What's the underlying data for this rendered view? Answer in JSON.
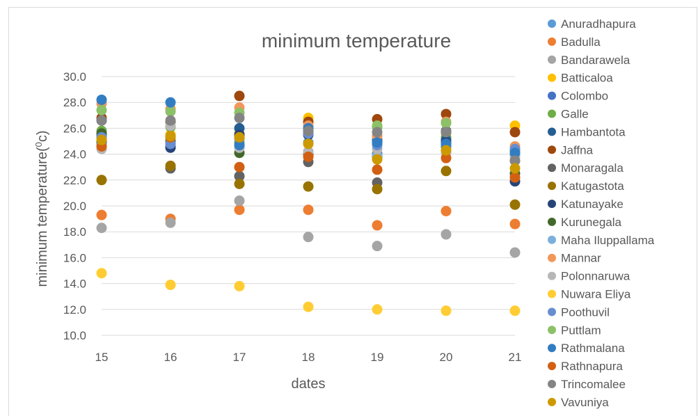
{
  "chart_data": {
    "type": "scatter",
    "title": "minimum temperature",
    "xlabel": "dates",
    "ylabel_main": "minimum temperature(",
    "ylabel_sup": "0",
    "ylabel_end": "c)",
    "x": [
      15,
      16,
      17,
      18,
      19,
      20,
      21
    ],
    "xlim": [
      15,
      21
    ],
    "ylim": [
      10,
      30
    ],
    "y_ticks": [
      10.0,
      12.0,
      14.0,
      16.0,
      18.0,
      20.0,
      22.0,
      24.0,
      26.0,
      28.0,
      30.0
    ],
    "grid": true,
    "legend_position": "right",
    "series": [
      {
        "name": "Anuradhapura",
        "color": "#5B9BD5",
        "values": [
          25.0,
          24.7,
          24.6,
          24.9,
          24.8,
          24.6,
          24.2
        ]
      },
      {
        "name": "Badulla",
        "color": "#ED7D31",
        "values": [
          19.3,
          19.0,
          19.7,
          19.7,
          18.5,
          19.6,
          18.6
        ]
      },
      {
        "name": "Bandarawela",
        "color": "#A5A5A5",
        "values": [
          18.3,
          18.7,
          20.4,
          17.6,
          16.9,
          17.8,
          16.4
        ]
      },
      {
        "name": "Batticaloa",
        "color": "#FFC000",
        "values": [
          25.3,
          25.5,
          25.6,
          26.8,
          25.4,
          25.6,
          26.2
        ]
      },
      {
        "name": "Colombo",
        "color": "#4472C4",
        "values": [
          25.0,
          24.6,
          25.4,
          25.7,
          25.0,
          24.9,
          24.3
        ]
      },
      {
        "name": "Galle",
        "color": "#70AD47",
        "values": [
          25.8,
          26.1,
          24.9,
          25.9,
          26.1,
          25.3,
          24.2
        ]
      },
      {
        "name": "Hambantota",
        "color": "#255E91",
        "values": [
          25.5,
          24.9,
          26.0,
          26.2,
          25.1,
          25.1,
          24.0
        ]
      },
      {
        "name": "Jaffna",
        "color": "#9E480E",
        "values": [
          26.8,
          26.5,
          28.5,
          26.5,
          26.7,
          27.1,
          25.7
        ]
      },
      {
        "name": "Monaragala",
        "color": "#636363",
        "values": [
          26.6,
          22.9,
          22.3,
          23.4,
          21.8,
          25.8,
          23.5
        ]
      },
      {
        "name": "Katugastota",
        "color": "#997300",
        "values": [
          22.0,
          23.1,
          21.7,
          21.5,
          21.3,
          22.7,
          20.1
        ]
      },
      {
        "name": "Katunayake",
        "color": "#264478",
        "values": [
          24.9,
          24.5,
          25.5,
          25.5,
          24.0,
          24.9,
          21.9
        ]
      },
      {
        "name": "Kurunegala",
        "color": "#43682B",
        "values": [
          25.6,
          25.0,
          24.1,
          24.0,
          23.8,
          24.6,
          22.5
        ]
      },
      {
        "name": "Maha Iluppallama",
        "color": "#7CAFDD",
        "values": [
          24.7,
          24.8,
          24.5,
          24.2,
          23.9,
          24.3,
          23.9
        ]
      },
      {
        "name": "Mannar",
        "color": "#F1975A",
        "values": [
          27.9,
          27.5,
          27.6,
          26.2,
          25.4,
          26.5,
          24.6
        ]
      },
      {
        "name": "Polonnaruwa",
        "color": "#B7B7B7",
        "values": [
          24.4,
          26.2,
          24.5,
          24.2,
          24.4,
          24.1,
          23.8
        ]
      },
      {
        "name": "Nuwara Eliya",
        "color": "#FFCD33",
        "values": [
          14.8,
          13.9,
          13.8,
          12.2,
          12.0,
          11.9,
          11.9
        ]
      },
      {
        "name": "Poothuvil",
        "color": "#698ED0",
        "values": [
          25.3,
          24.8,
          25.2,
          25.6,
          24.7,
          24.7,
          24.4
        ]
      },
      {
        "name": "Puttlam",
        "color": "#8CC168",
        "values": [
          27.4,
          27.3,
          27.2,
          25.9,
          26.2,
          26.4,
          24.1
        ]
      },
      {
        "name": "Rathmalana",
        "color": "#327DC2",
        "values": [
          28.2,
          28.0,
          24.7,
          26.0,
          24.9,
          24.8,
          24.1
        ]
      },
      {
        "name": "Rathnapura",
        "color": "#D26012",
        "values": [
          24.6,
          25.3,
          23.0,
          23.8,
          22.8,
          23.7,
          22.2
        ]
      },
      {
        "name": "Trincomalee",
        "color": "#848484",
        "values": [
          26.6,
          26.6,
          26.8,
          25.8,
          25.7,
          25.7,
          23.5
        ]
      },
      {
        "name": "Vavuniya",
        "color": "#CC9A00",
        "values": [
          25.1,
          25.4,
          25.3,
          24.8,
          23.6,
          24.3,
          22.9
        ]
      }
    ]
  }
}
